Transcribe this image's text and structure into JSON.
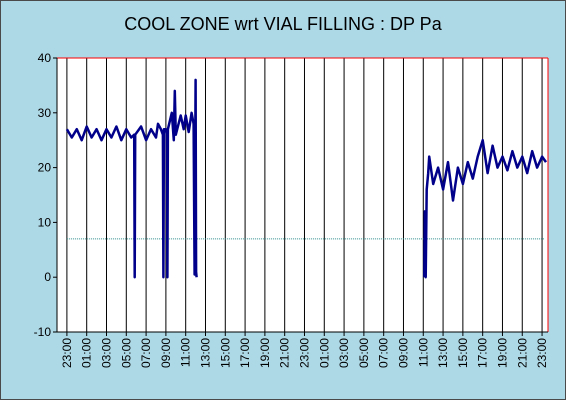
{
  "chart_data": {
    "type": "line",
    "title": "COOL ZONE wrt VIAL FILLING : DP Pa",
    "xlabel": "",
    "ylabel": "",
    "ylim": [
      -10,
      40
    ],
    "yticks": [
      "40",
      "30",
      "20",
      "10",
      "0",
      "-10"
    ],
    "xticks": [
      "23:00",
      "01:00",
      "03:00",
      "05:00",
      "07:00",
      "09:00",
      "11:00",
      "13:00",
      "15:00",
      "17:00",
      "19:00",
      "21:00",
      "23:00",
      "01:00",
      "03:00",
      "05:00",
      "07:00",
      "09:00",
      "11:00",
      "13:00",
      "15:00",
      "17:00",
      "19:00",
      "21:00",
      "23:00"
    ],
    "xrange_hours": [
      -1.0,
      48.6
    ],
    "grid": "vertical",
    "legend": "none",
    "colors": {
      "series": "#00008b",
      "reference": "#2e8b8b",
      "plot_border": "#ff0000",
      "background": "#add8e6"
    },
    "series": [
      {
        "values": [
          [
            0.0,
            27
          ],
          [
            0.5,
            25.5
          ],
          [
            1.0,
            27
          ],
          [
            1.5,
            25
          ],
          [
            2.0,
            27.5
          ],
          [
            2.5,
            25.5
          ],
          [
            3.0,
            27
          ],
          [
            3.5,
            25
          ],
          [
            4.0,
            27
          ],
          [
            4.5,
            25.5
          ],
          [
            5.0,
            27.5
          ],
          [
            5.5,
            25
          ],
          [
            6.0,
            27
          ],
          [
            6.5,
            25.5
          ],
          [
            6.8,
            26
          ],
          [
            6.85,
            0
          ],
          [
            6.9,
            26
          ],
          [
            7.5,
            27.5
          ],
          [
            8.0,
            25
          ],
          [
            8.5,
            27
          ],
          [
            9.0,
            25.5
          ],
          [
            9.2,
            28
          ],
          [
            9.5,
            27
          ],
          [
            9.7,
            26
          ],
          [
            9.75,
            0
          ],
          [
            9.8,
            27
          ],
          [
            10.0,
            27
          ],
          [
            10.1,
            26
          ],
          [
            10.15,
            0
          ],
          [
            10.2,
            27
          ],
          [
            10.6,
            30
          ],
          [
            10.8,
            25
          ],
          [
            10.9,
            34
          ],
          [
            11.0,
            26
          ],
          [
            11.5,
            29.5
          ],
          [
            11.8,
            27
          ],
          [
            12.0,
            29.5
          ],
          [
            12.3,
            26.5
          ],
          [
            12.6,
            30
          ],
          [
            12.8,
            28
          ],
          [
            12.9,
            0.5
          ],
          [
            13.0,
            36
          ],
          [
            13.05,
            1
          ],
          [
            13.1,
            0
          ],
          [
            36.1,
            0
          ],
          [
            36.15,
            12
          ],
          [
            36.25,
            0
          ],
          [
            36.35,
            16
          ],
          [
            36.5,
            19
          ],
          [
            36.6,
            22
          ],
          [
            37.0,
            17
          ],
          [
            37.5,
            20
          ],
          [
            38.0,
            16
          ],
          [
            38.5,
            21
          ],
          [
            39.0,
            14
          ],
          [
            39.5,
            20
          ],
          [
            40.0,
            17
          ],
          [
            40.5,
            21
          ],
          [
            41.0,
            18
          ],
          [
            41.5,
            22
          ],
          [
            42.0,
            25
          ],
          [
            42.5,
            19
          ],
          [
            43.0,
            24
          ],
          [
            43.5,
            20
          ],
          [
            44.0,
            22
          ],
          [
            44.5,
            19.5
          ],
          [
            45.0,
            23
          ],
          [
            45.5,
            20
          ],
          [
            46.0,
            22
          ],
          [
            46.5,
            19
          ],
          [
            47.0,
            23
          ],
          [
            47.5,
            20
          ],
          [
            48.0,
            22
          ],
          [
            48.4,
            21
          ]
        ]
      },
      {
        "values": [
          [
            0.0,
            7
          ],
          [
            48.2,
            7
          ]
        ]
      }
    ]
  }
}
